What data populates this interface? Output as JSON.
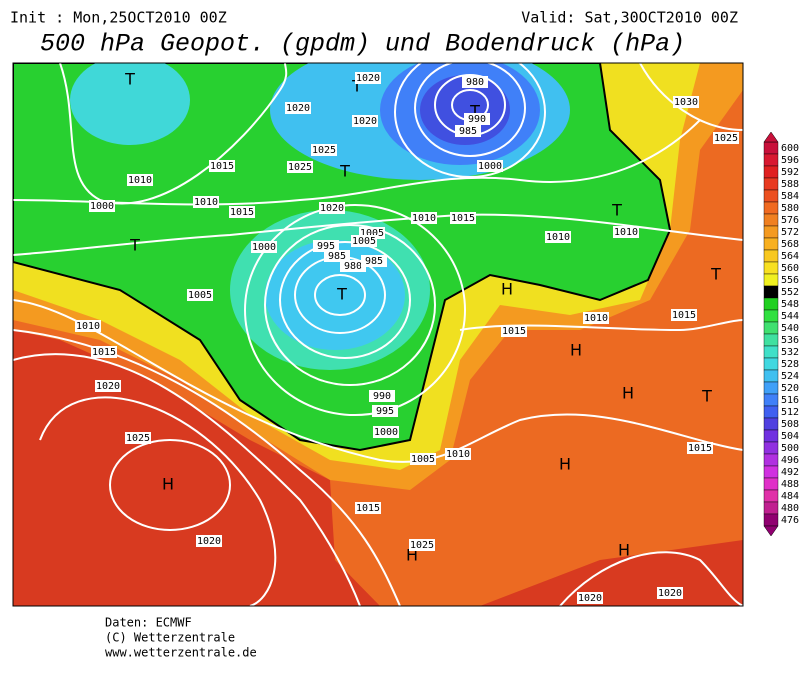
{
  "header": {
    "init": "Init : Mon,25OCT2010 00Z",
    "valid": "Valid: Sat,30OCT2010 00Z",
    "title": "500 hPa Geopot. (gpdm) und Bodendruck (hPa)"
  },
  "colorbar": {
    "labels": [
      "600",
      "596",
      "592",
      "588",
      "584",
      "580",
      "576",
      "572",
      "568",
      "564",
      "560",
      "556",
      "552",
      "548",
      "544",
      "540",
      "536",
      "532",
      "528",
      "524",
      "520",
      "516",
      "512",
      "508",
      "504",
      "500",
      "496",
      "492",
      "488",
      "484",
      "480",
      "476"
    ],
    "colors": [
      "#c8103a",
      "#d81830",
      "#e02020",
      "#e83a20",
      "#ec5020",
      "#f06a20",
      "#f08020",
      "#f49a20",
      "#f8b020",
      "#f8c820",
      "#f8e020",
      "#f0f020",
      "#000000",
      "#20d020",
      "#30e040",
      "#40e070",
      "#40e0a0",
      "#40e0c8",
      "#40d8e0",
      "#40c0f0",
      "#40a0f8",
      "#4080f8",
      "#4060f0",
      "#5040e0",
      "#7030e0",
      "#9030e0",
      "#b030e0",
      "#d030e0",
      "#e030c8",
      "#e030a8",
      "#c02090",
      "#900070"
    ]
  },
  "map": {
    "pressure_centers": [
      "T",
      "T",
      "T",
      "T",
      "T",
      "T",
      "T",
      "T",
      "T",
      "T",
      "H",
      "H",
      "H",
      "H",
      "H",
      "H",
      "H"
    ],
    "isobar_labels": [
      "1020",
      "980",
      "1020",
      "1020",
      "990",
      "985",
      "1025",
      "1025",
      "1015",
      "1000",
      "1010",
      "1000",
      "1010",
      "1015",
      "1020",
      "1005",
      "1010",
      "1015",
      "1010",
      "1030",
      "1025",
      "1010",
      "995",
      "985",
      "980",
      "1000",
      "985",
      "1005",
      "1005",
      "1010",
      "1015",
      "1020",
      "1025",
      "1015",
      "1020",
      "1010",
      "995",
      "990",
      "1000",
      "1005",
      "1010",
      "1015",
      "1015",
      "1025",
      "1020",
      "1020",
      "1015"
    ]
  },
  "footer": {
    "source": "Daten: ECMWF",
    "copyright": "(C) Wetterzentrale",
    "url": "www.wetterzentrale.de"
  }
}
